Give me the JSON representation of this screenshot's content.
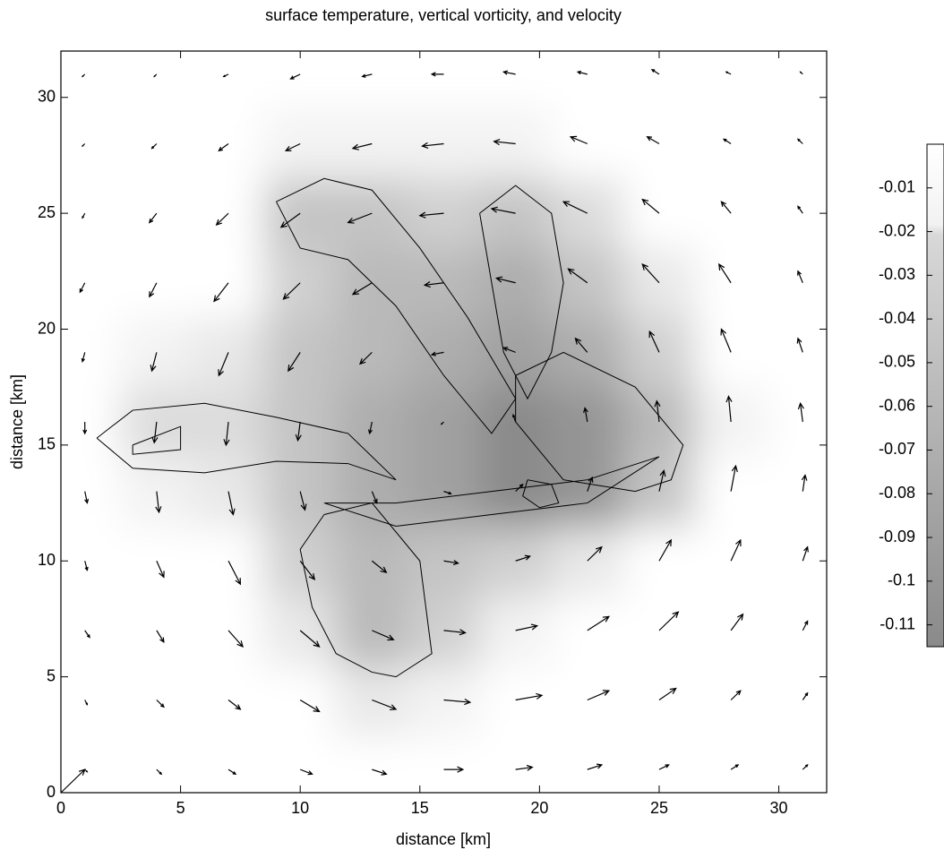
{
  "chart_data": {
    "type": "quiver",
    "title": "surface temperature, vertical vorticity, and velocity",
    "xlabel": "distance [km]",
    "ylabel": "distance [km]",
    "xlim": [
      0,
      32
    ],
    "ylim": [
      0,
      32
    ],
    "xticks": [
      0,
      5,
      10,
      15,
      20,
      25,
      30
    ],
    "yticks": [
      0,
      5,
      10,
      15,
      20,
      25,
      30
    ],
    "x": [
      1,
      4,
      7,
      10,
      13,
      16,
      19,
      22,
      25,
      28,
      31
    ],
    "y": [
      1,
      4,
      7,
      10,
      13,
      16,
      19,
      22,
      25,
      28,
      31
    ],
    "u": [
      [
        0.1,
        0.2,
        0.3,
        0.5,
        0.6,
        0.8,
        0.7,
        0.6,
        0.4,
        0.3,
        0.2
      ],
      [
        0.1,
        0.3,
        0.5,
        0.8,
        1.0,
        1.1,
        1.1,
        0.9,
        0.7,
        0.4,
        0.2
      ],
      [
        0.2,
        0.3,
        0.6,
        0.8,
        0.9,
        0.9,
        0.9,
        0.9,
        0.8,
        0.5,
        0.2
      ],
      [
        0.1,
        0.3,
        0.5,
        0.6,
        0.6,
        0.6,
        0.6,
        0.6,
        0.5,
        0.4,
        0.2
      ],
      [
        0.1,
        0.1,
        0.2,
        0.2,
        0.2,
        0.3,
        0.3,
        0.2,
        0.2,
        0.2,
        0.1
      ],
      [
        0,
        -0.1,
        -0.1,
        -0.1,
        -0.1,
        -0.1,
        -0.1,
        -0.1,
        -0.1,
        -0.1,
        -0.1
      ],
      [
        -0.1,
        -0.2,
        -0.4,
        -0.5,
        -0.5,
        -0.5,
        -0.5,
        -0.5,
        -0.4,
        -0.4,
        -0.2
      ],
      [
        -0.2,
        -0.3,
        -0.6,
        -0.7,
        -0.8,
        -0.8,
        -0.8,
        -0.8,
        -0.7,
        -0.5,
        -0.2
      ],
      [
        -0.1,
        -0.3,
        -0.5,
        -0.8,
        -1.0,
        -1.0,
        -1.0,
        -1.0,
        -0.7,
        -0.4,
        -0.2
      ],
      [
        -0.1,
        -0.2,
        -0.4,
        -0.6,
        -0.8,
        -0.9,
        -0.9,
        -0.7,
        -0.5,
        -0.3,
        -0.2
      ],
      [
        -0.1,
        -0.1,
        -0.2,
        -0.4,
        -0.4,
        -0.5,
        -0.5,
        -0.4,
        -0.3,
        -0.2,
        -0.1
      ]
    ],
    "v": [
      [
        -0.1,
        -0.2,
        -0.2,
        -0.2,
        -0.2,
        0,
        0.1,
        0.2,
        0.2,
        0.2,
        0.2
      ],
      [
        -0.2,
        -0.3,
        -0.4,
        -0.5,
        -0.4,
        -0.1,
        0.2,
        0.4,
        0.5,
        0.4,
        0.3
      ],
      [
        -0.3,
        -0.5,
        -0.7,
        -0.7,
        -0.4,
        -0.1,
        0.2,
        0.6,
        0.8,
        0.7,
        0.4
      ],
      [
        -0.4,
        -0.7,
        -1.0,
        -0.8,
        -0.5,
        -0.1,
        0.2,
        0.6,
        0.9,
        0.9,
        0.6
      ],
      [
        -0.5,
        -0.9,
        -1.0,
        -0.8,
        -0.5,
        -0.1,
        0.3,
        0.6,
        0.9,
        1.1,
        0.7
      ],
      [
        -0.5,
        -0.9,
        -1.0,
        -0.8,
        -0.5,
        -0.1,
        0.3,
        0.6,
        0.9,
        1.1,
        0.8
      ],
      [
        -0.4,
        -0.8,
        -1.0,
        -0.8,
        -0.5,
        -0.1,
        0.2,
        0.6,
        0.9,
        1.0,
        0.6
      ],
      [
        -0.4,
        -0.6,
        -0.8,
        -0.7,
        -0.5,
        -0.1,
        0.2,
        0.6,
        0.8,
        0.8,
        0.5
      ],
      [
        -0.2,
        -0.4,
        -0.5,
        -0.6,
        -0.4,
        -0.1,
        0.2,
        0.5,
        0.6,
        0.5,
        0.3
      ],
      [
        -0.1,
        -0.2,
        -0.3,
        -0.3,
        -0.2,
        -0.1,
        0.1,
        0.3,
        0.3,
        0.2,
        0.2
      ],
      [
        -0.1,
        -0.1,
        -0.1,
        -0.2,
        -0.1,
        0,
        0.1,
        0.1,
        0.2,
        0.1,
        0.1
      ]
    ],
    "temperature": [
      [
        0,
        0,
        0,
        0,
        0,
        0,
        0,
        0,
        0,
        0,
        0
      ],
      [
        0,
        0,
        0,
        0,
        -0.02,
        -0.01,
        0,
        0,
        0,
        0,
        0
      ],
      [
        0,
        0,
        0,
        -0.02,
        -0.06,
        -0.04,
        -0.01,
        0,
        0,
        0,
        0
      ],
      [
        0,
        0,
        0,
        -0.04,
        -0.06,
        -0.05,
        -0.04,
        -0.02,
        0,
        0,
        0
      ],
      [
        0,
        -0.01,
        -0.02,
        -0.05,
        -0.07,
        -0.08,
        -0.1,
        -0.09,
        -0.05,
        0,
        0
      ],
      [
        0,
        -0.03,
        -0.03,
        -0.05,
        -0.07,
        -0.08,
        -0.1,
        -0.09,
        -0.06,
        -0.01,
        0
      ],
      [
        0,
        -0.01,
        -0.02,
        -0.05,
        -0.06,
        -0.07,
        -0.08,
        -0.07,
        -0.04,
        0,
        0
      ],
      [
        0,
        0,
        0,
        -0.04,
        -0.06,
        -0.06,
        -0.07,
        -0.05,
        -0.02,
        0,
        0
      ],
      [
        0,
        0,
        0,
        -0.05,
        -0.05,
        -0.04,
        -0.05,
        -0.03,
        0,
        0,
        0
      ],
      [
        0,
        0,
        0,
        -0.01,
        -0.01,
        -0.01,
        -0.01,
        0,
        0,
        0,
        0
      ],
      [
        0,
        0,
        0,
        0,
        0,
        0,
        0,
        0,
        0,
        0,
        0
      ]
    ],
    "contours": [
      {
        "x": [
          1.5,
          3,
          6,
          9,
          12,
          14,
          12,
          9,
          6,
          3,
          1.5
        ],
        "y": [
          15.3,
          16.5,
          16.8,
          16.2,
          15.5,
          13.5,
          14.2,
          14.3,
          13.8,
          14,
          15.3
        ]
      },
      {
        "x": [
          3,
          5,
          5,
          3,
          3
        ],
        "y": [
          15,
          15.8,
          14.8,
          14.6,
          15
        ]
      },
      {
        "x": [
          9,
          11,
          13,
          15,
          17,
          19,
          18,
          16,
          14,
          12,
          10,
          9
        ],
        "y": [
          25.5,
          26.5,
          26,
          23.5,
          20.5,
          17,
          15.5,
          18,
          21,
          23,
          23.5,
          25.5
        ]
      },
      {
        "x": [
          17.5,
          19,
          20.5,
          21,
          20.5,
          19.5,
          18.5,
          17.5
        ],
        "y": [
          25,
          26.2,
          25,
          22,
          19,
          17,
          19,
          25
        ]
      },
      {
        "x": [
          19,
          21,
          24,
          26,
          25.5,
          24,
          21,
          19,
          19
        ],
        "y": [
          18,
          19,
          17.5,
          15,
          13.5,
          13,
          13.5,
          16,
          18
        ]
      },
      {
        "x": [
          11,
          13,
          15,
          15.5,
          14,
          13,
          11.5,
          10.5,
          10,
          11
        ],
        "y": [
          12,
          12.5,
          10,
          6,
          5,
          5.2,
          6,
          8,
          10.5,
          12
        ]
      },
      {
        "x": [
          11,
          14,
          18,
          22,
          25,
          22,
          18,
          14,
          11
        ],
        "y": [
          12.5,
          12.5,
          13,
          13.5,
          14.5,
          12.5,
          12,
          11.5,
          12.5
        ]
      },
      {
        "x": [
          19.5,
          20.5,
          20.8,
          20,
          19.3,
          19.5
        ],
        "y": [
          13.5,
          13.3,
          12.5,
          12.3,
          12.8,
          13.5
        ]
      }
    ],
    "reference_vector": {
      "u": 1,
      "v": 1
    },
    "clim": [
      -0.115,
      0
    ],
    "cticks": [
      -0.01,
      -0.02,
      -0.03,
      -0.04,
      -0.05,
      -0.06,
      -0.07,
      -0.08,
      -0.09,
      -0.1,
      -0.11
    ]
  }
}
